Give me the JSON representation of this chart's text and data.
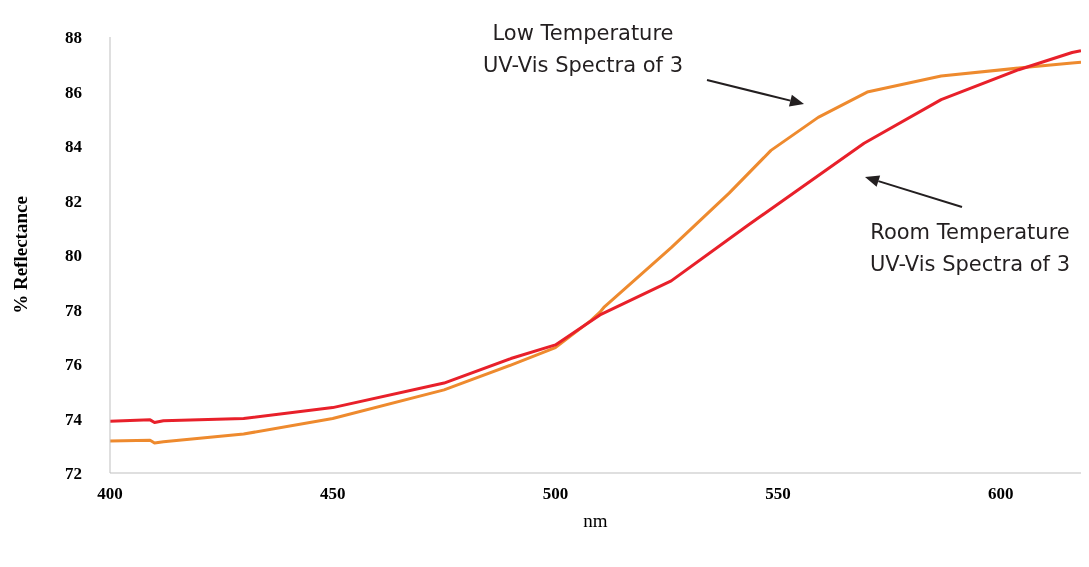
{
  "chart_data": {
    "type": "line",
    "xlabel": "nm",
    "ylabel": "% Reflectance",
    "xlim": [
      400,
      618
    ],
    "xticks": [
      400,
      450,
      500,
      550,
      600
    ],
    "ylim": [
      72,
      88
    ],
    "yticks": [
      72,
      74,
      76,
      78,
      80,
      82,
      84,
      86,
      88
    ],
    "grid": false,
    "legend": false,
    "marker": "none",
    "line_style": "solid",
    "annotations": [
      "Low Temperature\nUV-Vis Spectra of 3",
      "Room Temperature\nUV-Vis Spectra of 3"
    ],
    "series": [
      {
        "color": "#ee8a2e",
        "x": [
          400,
          409,
          410,
          412,
          430,
          450,
          475,
          490,
          500,
          508,
          510,
          511,
          526,
          539,
          548.4,
          559,
          570,
          586.6,
          604,
          616,
          618
        ],
        "values": [
          73.17,
          73.2,
          73.1,
          73.15,
          73.43,
          74.0,
          75.05,
          75.96,
          76.6,
          77.6,
          77.9,
          78.1,
          80.27,
          82.27,
          83.84,
          85.05,
          85.98,
          86.57,
          86.86,
          87.05,
          87.07
        ]
      },
      {
        "color": "#e8202a",
        "x": [
          400,
          409,
          410,
          412,
          430,
          450,
          475,
          490,
          500,
          510,
          526,
          543.3,
          554.6,
          569.3,
          586.6,
          604,
          616,
          618
        ],
        "values": [
          73.9,
          73.95,
          73.85,
          73.92,
          74.0,
          74.4,
          75.3,
          76.2,
          76.7,
          77.8,
          79.05,
          81.1,
          82.4,
          84.1,
          85.7,
          86.8,
          87.43,
          87.5
        ]
      }
    ]
  }
}
